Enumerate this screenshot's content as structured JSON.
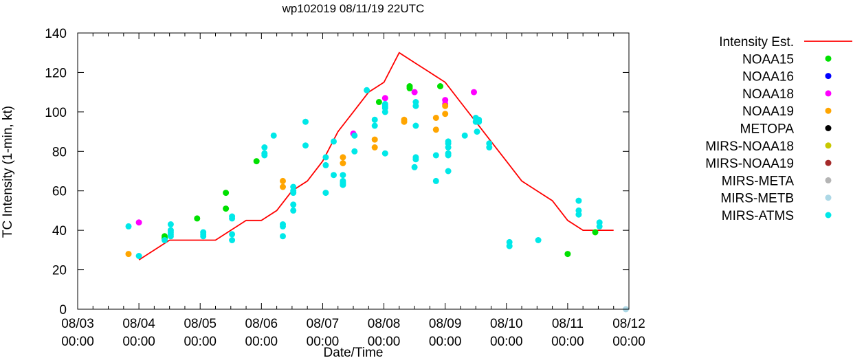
{
  "chart_data": {
    "type": "scatter",
    "title": "wp102019 08/11/19 22UTC",
    "xlabel": "Date/Time",
    "ylabel": "TC Intensity (1-min, kt)",
    "xlim_days": [
      0,
      9
    ],
    "ylim": [
      0,
      140
    ],
    "yticks": [
      0,
      20,
      40,
      60,
      80,
      100,
      120,
      140
    ],
    "xticks": [
      {
        "day": 0,
        "line1": "08/03",
        "line2": "00:00"
      },
      {
        "day": 1,
        "line1": "08/04",
        "line2": "00:00"
      },
      {
        "day": 2,
        "line1": "08/05",
        "line2": "00:00"
      },
      {
        "day": 3,
        "line1": "08/06",
        "line2": "00:00"
      },
      {
        "day": 4,
        "line1": "08/07",
        "line2": "00:00"
      },
      {
        "day": 5,
        "line1": "08/08",
        "line2": "00:00"
      },
      {
        "day": 6,
        "line1": "08/09",
        "line2": "00:00"
      },
      {
        "day": 7,
        "line1": "08/10",
        "line2": "00:00"
      },
      {
        "day": 8,
        "line1": "08/11",
        "line2": "00:00"
      },
      {
        "day": 9,
        "line1": "08/12",
        "line2": "00:00"
      }
    ],
    "x_units": "days since 08/03 00:00",
    "line_series": {
      "name": "Intensity Est.",
      "color": "#ff0000",
      "points": [
        [
          1.0,
          25
        ],
        [
          1.5,
          35
        ],
        [
          2.25,
          35
        ],
        [
          2.75,
          45
        ],
        [
          3.0,
          45
        ],
        [
          3.25,
          50
        ],
        [
          3.5,
          60
        ],
        [
          3.75,
          65
        ],
        [
          4.0,
          75
        ],
        [
          4.25,
          90
        ],
        [
          4.5,
          100
        ],
        [
          4.75,
          110
        ],
        [
          5.0,
          115
        ],
        [
          5.25,
          130
        ],
        [
          5.5,
          125
        ],
        [
          5.75,
          120
        ],
        [
          6.0,
          115
        ],
        [
          6.25,
          105
        ],
        [
          6.5,
          95
        ],
        [
          6.75,
          85
        ],
        [
          7.0,
          75
        ],
        [
          7.25,
          65
        ],
        [
          7.5,
          60
        ],
        [
          7.75,
          55
        ],
        [
          8.0,
          45
        ],
        [
          8.25,
          40
        ],
        [
          8.75,
          40
        ]
      ]
    },
    "series": [
      {
        "name": "NOAA15",
        "color": "#00e000",
        "points": [
          [
            1.42,
            37
          ],
          [
            1.42,
            36
          ],
          [
            1.95,
            46
          ],
          [
            2.42,
            59
          ],
          [
            2.42,
            51
          ],
          [
            2.92,
            75
          ],
          [
            4.92,
            105
          ],
          [
            5.42,
            113
          ],
          [
            5.42,
            112
          ],
          [
            5.92,
            113
          ],
          [
            8.0,
            28
          ],
          [
            8.45,
            39
          ]
        ]
      },
      {
        "name": "NOAA16",
        "color": "#0000ff",
        "points": []
      },
      {
        "name": "NOAA18",
        "color": "#ff00ff",
        "points": [
          [
            1.0,
            44
          ],
          [
            4.5,
            89
          ],
          [
            5.02,
            107
          ],
          [
            5.5,
            110
          ],
          [
            6.0,
            106
          ],
          [
            6.0,
            104
          ],
          [
            6.47,
            110
          ]
        ]
      },
      {
        "name": "NOAA19",
        "color": "#ffa500",
        "points": [
          [
            0.83,
            28
          ],
          [
            3.35,
            65
          ],
          [
            3.35,
            62
          ],
          [
            4.33,
            77
          ],
          [
            4.33,
            74
          ],
          [
            4.85,
            86
          ],
          [
            4.85,
            82
          ],
          [
            5.33,
            96
          ],
          [
            5.33,
            95
          ],
          [
            5.85,
            97
          ],
          [
            5.85,
            91
          ],
          [
            6.0,
            103
          ],
          [
            6.0,
            99
          ]
        ]
      },
      {
        "name": "METOPA",
        "color": "#000000",
        "points": []
      },
      {
        "name": "MIRS-NOAA18",
        "color": "#c8c800",
        "points": []
      },
      {
        "name": "MIRS-NOAA19",
        "color": "#a52a2a",
        "points": []
      },
      {
        "name": "MIRS-META",
        "color": "#b4b4b4",
        "points": []
      },
      {
        "name": "MIRS-METB",
        "color": "#add8e6",
        "points": [
          [
            8.95,
            0
          ]
        ]
      },
      {
        "name": "MIRS-ATMS",
        "color": "#00e8e8",
        "points": [
          [
            0.83,
            42
          ],
          [
            1.0,
            27
          ],
          [
            1.42,
            35
          ],
          [
            1.52,
            43
          ],
          [
            1.52,
            40
          ],
          [
            1.52,
            39
          ],
          [
            1.52,
            38
          ],
          [
            1.52,
            37
          ],
          [
            2.05,
            39
          ],
          [
            2.05,
            38
          ],
          [
            2.05,
            37
          ],
          [
            2.52,
            47
          ],
          [
            2.52,
            46
          ],
          [
            2.52,
            38
          ],
          [
            2.52,
            35
          ],
          [
            3.05,
            82
          ],
          [
            3.05,
            79
          ],
          [
            3.05,
            78
          ],
          [
            3.2,
            88
          ],
          [
            3.35,
            43
          ],
          [
            3.35,
            42
          ],
          [
            3.35,
            37
          ],
          [
            3.52,
            62
          ],
          [
            3.52,
            60
          ],
          [
            3.52,
            59
          ],
          [
            3.52,
            53
          ],
          [
            3.52,
            50
          ],
          [
            3.72,
            95
          ],
          [
            3.72,
            83
          ],
          [
            4.05,
            77
          ],
          [
            4.05,
            73
          ],
          [
            4.05,
            59
          ],
          [
            4.18,
            85
          ],
          [
            4.18,
            68
          ],
          [
            4.33,
            68
          ],
          [
            4.33,
            65
          ],
          [
            4.33,
            64
          ],
          [
            4.33,
            63
          ],
          [
            4.52,
            88
          ],
          [
            4.52,
            80
          ],
          [
            4.72,
            111
          ],
          [
            4.85,
            96
          ],
          [
            4.85,
            93
          ],
          [
            5.02,
            104
          ],
          [
            5.02,
            103
          ],
          [
            5.02,
            102
          ],
          [
            5.02,
            100
          ],
          [
            5.02,
            79
          ],
          [
            5.52,
            105
          ],
          [
            5.52,
            103
          ],
          [
            5.52,
            93
          ],
          [
            5.52,
            77
          ],
          [
            5.52,
            76
          ],
          [
            5.5,
            72
          ],
          [
            5.85,
            78
          ],
          [
            5.85,
            65
          ],
          [
            6.05,
            85
          ],
          [
            6.05,
            84
          ],
          [
            6.05,
            82
          ],
          [
            6.05,
            79
          ],
          [
            6.05,
            78
          ],
          [
            6.05,
            70
          ],
          [
            6.32,
            88
          ],
          [
            6.5,
            97
          ],
          [
            6.5,
            95
          ],
          [
            6.55,
            96
          ],
          [
            6.55,
            95
          ],
          [
            6.52,
            90
          ],
          [
            6.72,
            84
          ],
          [
            6.72,
            82
          ],
          [
            7.05,
            34
          ],
          [
            7.05,
            32
          ],
          [
            7.52,
            35
          ],
          [
            8.18,
            55
          ],
          [
            8.18,
            50
          ],
          [
            8.18,
            48
          ],
          [
            8.52,
            44
          ],
          [
            8.52,
            42
          ]
        ]
      }
    ]
  }
}
